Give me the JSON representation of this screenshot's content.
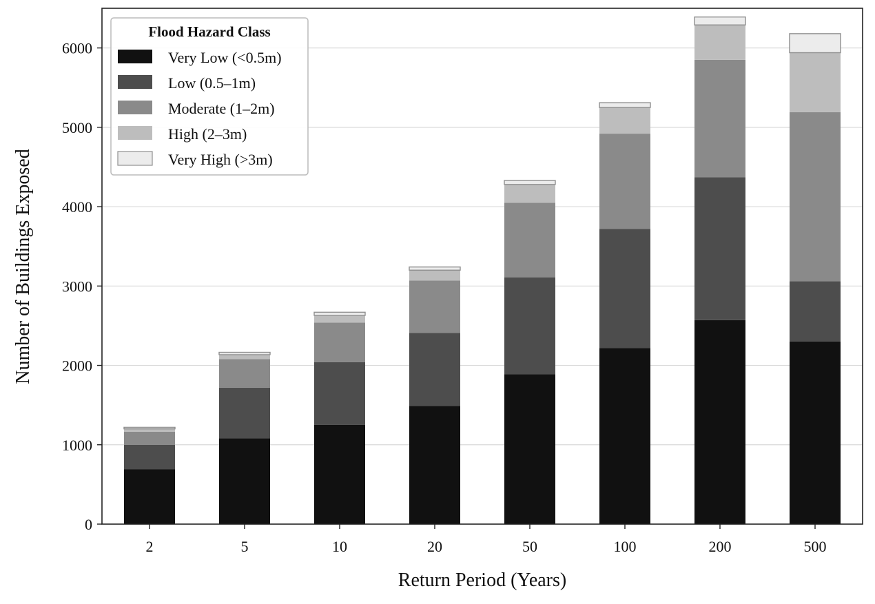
{
  "chart_data": {
    "type": "bar",
    "stacked": true,
    "title": "",
    "xlabel": "Return Period (Years)",
    "ylabel": "Number of Buildings Exposed",
    "categories": [
      "2",
      "5",
      "10",
      "20",
      "50",
      "100",
      "200",
      "500"
    ],
    "ylim": [
      0,
      6500
    ],
    "yticks": [
      "0",
      "1000",
      "2000",
      "3000",
      "4000",
      "5000",
      "6000"
    ],
    "grid": "horizontal",
    "legend": {
      "title": "Flood Hazard Class",
      "placement": "top-left"
    },
    "series": [
      {
        "name": "Very Low (<0.5m)",
        "color": "#111111",
        "values": [
          690,
          1080,
          1250,
          1490,
          1890,
          2220,
          2570,
          2300
        ]
      },
      {
        "name": "Low (0.5–1m)",
        "color": "#4d4d4d",
        "values": [
          310,
          640,
          790,
          920,
          1220,
          1500,
          1800,
          760
        ]
      },
      {
        "name": "Moderate (1–2m)",
        "color": "#8a8a8a",
        "values": [
          165,
          360,
          500,
          660,
          940,
          1200,
          1480,
          2130
        ]
      },
      {
        "name": "High (2–3m)",
        "color": "#bdbdbd",
        "values": [
          35,
          55,
          90,
          130,
          230,
          330,
          440,
          750
        ]
      },
      {
        "name": "Very High (>3m)",
        "color": "#ececec",
        "values": [
          20,
          30,
          40,
          40,
          50,
          60,
          100,
          240
        ]
      }
    ]
  }
}
